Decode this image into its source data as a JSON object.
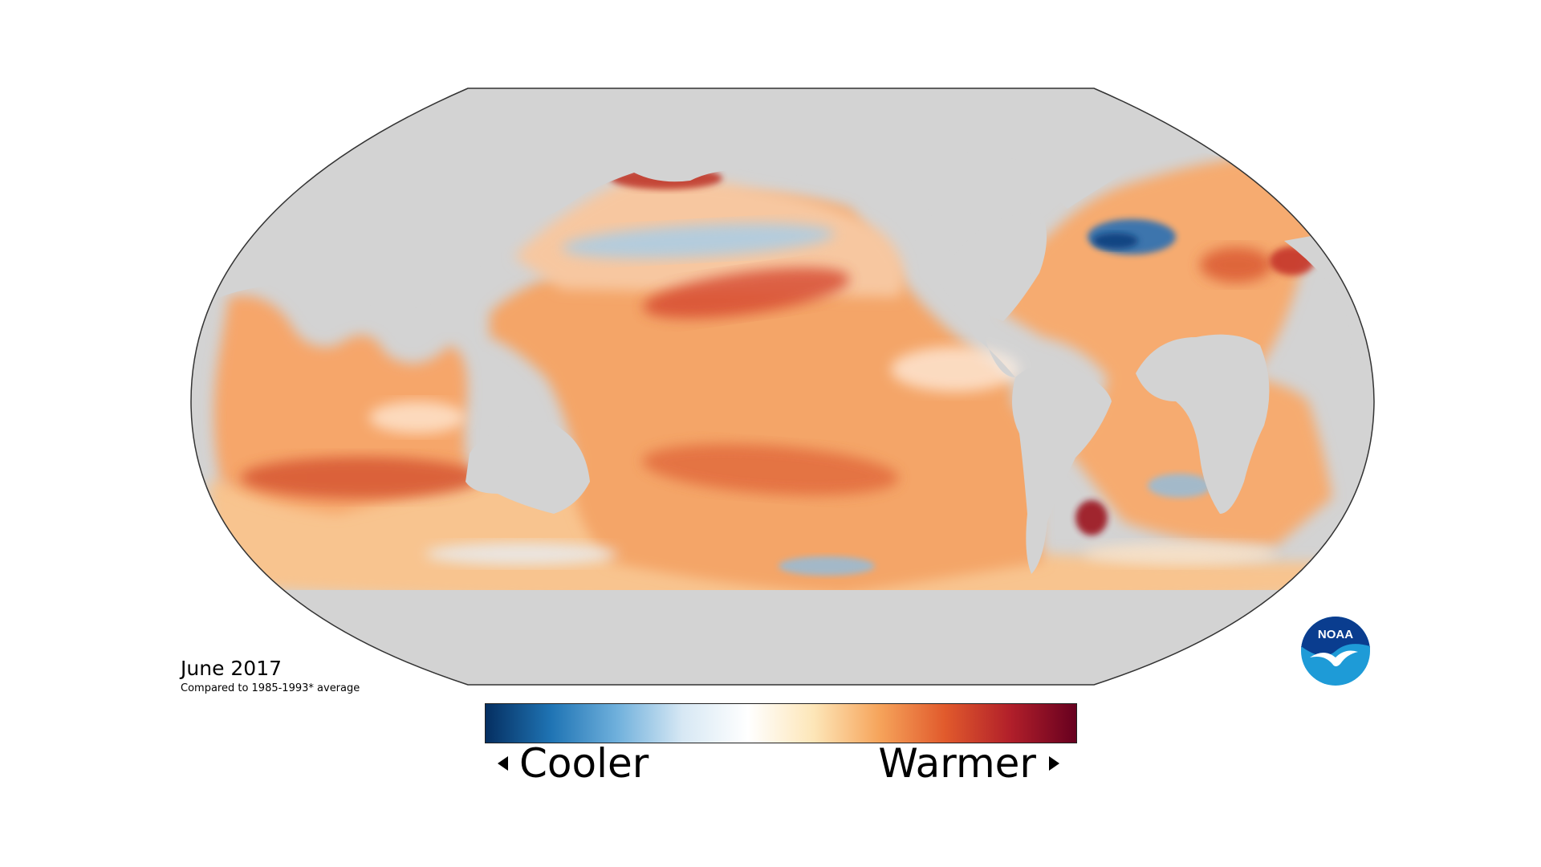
{
  "map": {
    "projection": "robinson",
    "date_label": "June 2017",
    "note": "Compared to 1985-1993* average",
    "land_color": "#d3d3d3",
    "outline_color": "#333333"
  },
  "legend": {
    "left_label": "Cooler",
    "right_label": "Warmer",
    "colors": [
      "#052f61",
      "#1f74b4",
      "#6fb0dc",
      "#d7e8f4",
      "#ffffff",
      "#fde6b8",
      "#f6a45b",
      "#e15a2c",
      "#b11f2a",
      "#67001f"
    ]
  },
  "logo": {
    "text": "NOAA",
    "name": "noaa-logo",
    "colors": [
      "#0a3d8f",
      "#1e9bd7",
      "#ffffff"
    ]
  }
}
